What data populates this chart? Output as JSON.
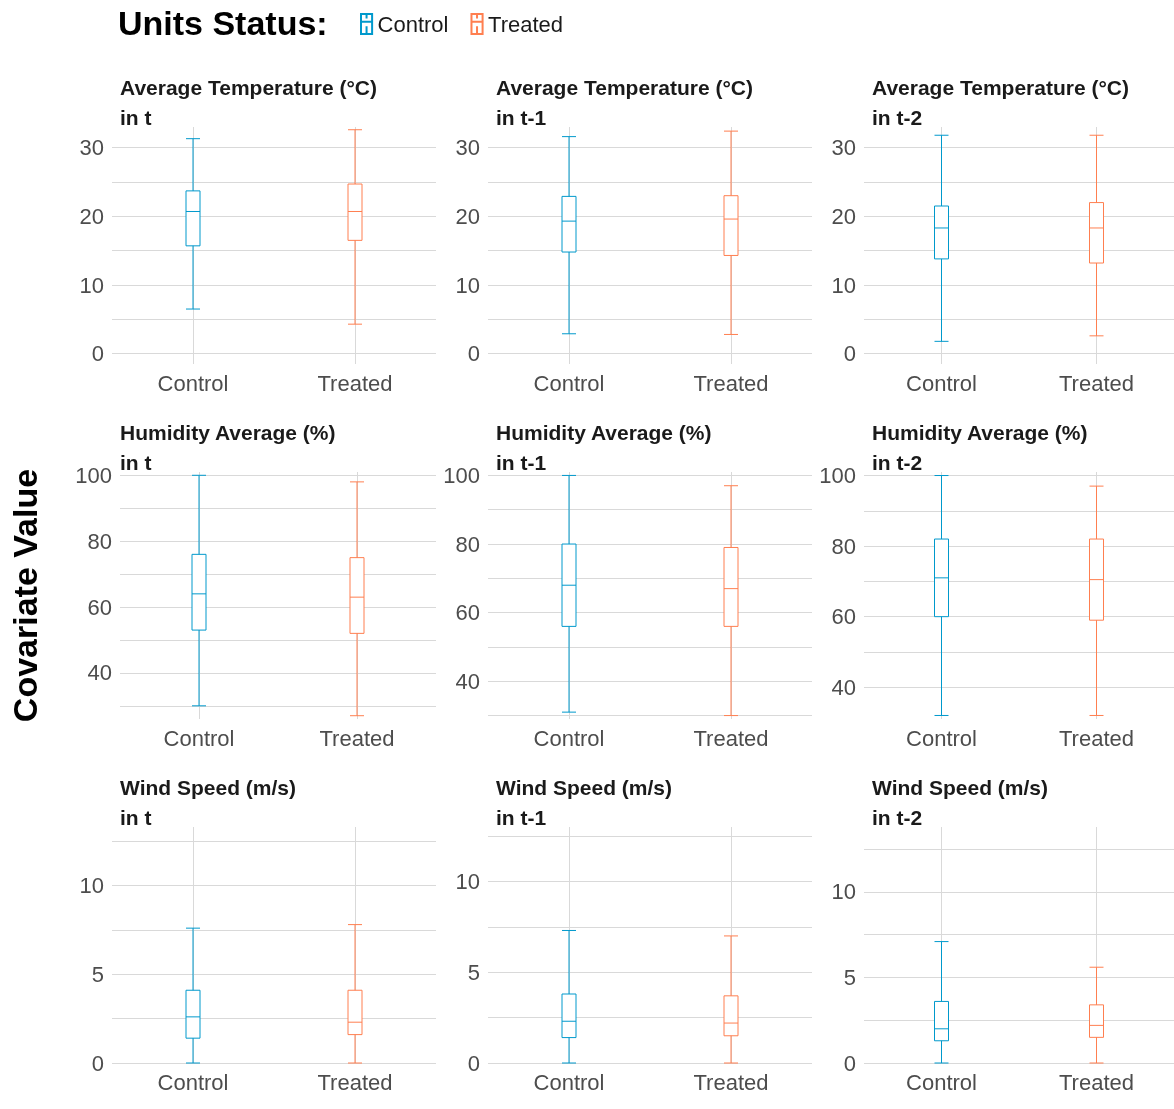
{
  "chart_data": [
    {
      "type": "box",
      "title": "Average Temperature (°C)\nin t",
      "legend_title": "Units Status:",
      "legend": "top",
      "grid": true,
      "categories": [
        "Control",
        "Treated"
      ],
      "ylim": [
        -1.5,
        33
      ],
      "yticks": [
        0,
        {
          "value": 5,
          "label": null
        },
        10,
        {
          "value": 15,
          "label": null
        },
        20,
        {
          "value": 25,
          "label": null
        },
        30
      ],
      "series": [
        {
          "name": "Control",
          "color": "#0099cc",
          "boxes": [
            {
              "low": 6.5,
              "q1": 15.7,
              "median": 20.7,
              "q3": 23.7,
              "high": 31.3
            },
            null
          ]
        },
        {
          "name": "Treated",
          "color": "#ff7f50",
          "boxes": [
            null,
            {
              "low": 4.3,
              "q1": 16.5,
              "median": 20.7,
              "q3": 24.7,
              "high": 32.6
            }
          ]
        }
      ]
    },
    {
      "type": "box",
      "title": "Average Temperature (°C)\nin t-1",
      "grid": true,
      "categories": [
        "Control",
        "Treated"
      ],
      "ylim": [
        -1.5,
        33
      ],
      "yticks": [
        0,
        {
          "value": 5,
          "label": null
        },
        10,
        {
          "value": 15,
          "label": null
        },
        20,
        {
          "value": 25,
          "label": null
        },
        30
      ],
      "series": [
        {
          "color": "#0099cc",
          "boxes": [
            {
              "low": 2.9,
              "q1": 14.8,
              "median": 19.3,
              "q3": 22.9,
              "high": 31.6
            },
            null
          ]
        },
        {
          "color": "#ff7f50",
          "boxes": [
            null,
            {
              "low": 2.8,
              "q1": 14.3,
              "median": 19.6,
              "q3": 23,
              "high": 32.4
            }
          ]
        }
      ]
    },
    {
      "type": "box",
      "title": "Average Temperature (°C)\nin t-2",
      "grid": true,
      "categories": [
        "Control",
        "Treated"
      ],
      "ylim": [
        -1.5,
        33
      ],
      "yticks": [
        0,
        {
          "value": 5,
          "label": null
        },
        10,
        {
          "value": 15,
          "label": null
        },
        20,
        {
          "value": 25,
          "label": null
        },
        30
      ],
      "series": [
        {
          "color": "#0099cc",
          "boxes": [
            {
              "low": 1.8,
              "q1": 13.8,
              "median": 18.3,
              "q3": 21.5,
              "high": 31.8
            },
            null
          ]
        },
        {
          "color": "#ff7f50",
          "boxes": [
            null,
            {
              "low": 2.6,
              "q1": 13.2,
              "median": 18.3,
              "q3": 22,
              "high": 31.8
            }
          ]
        }
      ]
    },
    {
      "type": "box",
      "title": "Humidity Average (%)\nin t",
      "ylabel": "Covariate Value",
      "grid": true,
      "categories": [
        "Control",
        "Treated"
      ],
      "ylim": [
        26,
        101
      ],
      "yticks": [
        {
          "value": 30,
          "label": null
        },
        40,
        {
          "value": 50,
          "label": null
        },
        60,
        {
          "value": 70,
          "label": null
        },
        80,
        {
          "value": 90,
          "label": null
        },
        100
      ],
      "series": [
        {
          "color": "#0099cc",
          "boxes": [
            {
              "low": 30,
              "q1": 53,
              "median": 64,
              "q3": 76,
              "high": 100
            },
            null
          ]
        },
        {
          "color": "#ff7f50",
          "boxes": [
            null,
            {
              "low": 27,
              "q1": 52,
              "median": 63,
              "q3": 75,
              "high": 98
            }
          ]
        }
      ]
    },
    {
      "type": "box",
      "title": "Humidity Average (%)\nin t-1",
      "grid": true,
      "categories": [
        "Control",
        "Treated"
      ],
      "ylim": [
        29,
        101
      ],
      "yticks": [
        {
          "value": 30,
          "label": null
        },
        40,
        {
          "value": 50,
          "label": null
        },
        60,
        {
          "value": 70,
          "label": null
        },
        80,
        {
          "value": 90,
          "label": null
        },
        100
      ],
      "series": [
        {
          "color": "#0099cc",
          "boxes": [
            {
              "low": 31,
              "q1": 56,
              "median": 68,
              "q3": 80,
              "high": 100
            },
            null
          ]
        },
        {
          "color": "#ff7f50",
          "boxes": [
            null,
            {
              "low": 30,
              "q1": 56,
              "median": 67,
              "q3": 79,
              "high": 97
            }
          ]
        }
      ]
    },
    {
      "type": "box",
      "title": "Humidity Average (%)\nin t-2",
      "grid": true,
      "categories": [
        "Control",
        "Treated"
      ],
      "ylim": [
        31,
        101
      ],
      "yticks": [
        40,
        {
          "value": 50,
          "label": null
        },
        60,
        {
          "value": 70,
          "label": null
        },
        80,
        {
          "value": 90,
          "label": null
        },
        100
      ],
      "series": [
        {
          "color": "#0099cc",
          "boxes": [
            {
              "low": 32,
              "q1": 60,
              "median": 71,
              "q3": 82,
              "high": 100
            },
            null
          ]
        },
        {
          "color": "#ff7f50",
          "boxes": [
            null,
            {
              "low": 32,
              "q1": 59,
              "median": 70.5,
              "q3": 82,
              "high": 97
            }
          ]
        }
      ]
    },
    {
      "type": "box",
      "title": "Wind Speed (m/s)\nin t",
      "grid": true,
      "categories": [
        "Control",
        "Treated"
      ],
      "ylim": [
        0,
        13.3
      ],
      "yticks": [
        0,
        {
          "value": 2.5,
          "label": null
        },
        5,
        {
          "value": 7.5,
          "label": null
        },
        10,
        {
          "value": 12.5,
          "label": null
        }
      ],
      "series": [
        {
          "color": "#0099cc",
          "boxes": [
            {
              "low": 0,
              "q1": 1.4,
              "median": 2.6,
              "q3": 4.1,
              "high": 7.6
            },
            null
          ]
        },
        {
          "color": "#ff7f50",
          "boxes": [
            null,
            {
              "low": 0,
              "q1": 1.6,
              "median": 2.3,
              "q3": 4.1,
              "high": 7.8
            }
          ]
        }
      ]
    },
    {
      "type": "box",
      "title": "Wind Speed (m/s)\nin t-1",
      "grid": true,
      "categories": [
        "Control",
        "Treated"
      ],
      "ylim": [
        0,
        13
      ],
      "yticks": [
        0,
        {
          "value": 2.5,
          "label": null
        },
        5,
        {
          "value": 7.5,
          "label": null
        },
        10,
        {
          "value": 12.5,
          "label": null
        }
      ],
      "series": [
        {
          "color": "#0099cc",
          "boxes": [
            {
              "low": 0,
              "q1": 1.4,
              "median": 2.3,
              "q3": 3.8,
              "high": 7.3
            },
            null
          ]
        },
        {
          "color": "#ff7f50",
          "boxes": [
            null,
            {
              "low": 0,
              "q1": 1.5,
              "median": 2.2,
              "q3": 3.7,
              "high": 7.0
            }
          ]
        }
      ]
    },
    {
      "type": "box",
      "title": "Wind Speed (m/s)\nin t-2",
      "grid": true,
      "categories": [
        "Control",
        "Treated"
      ],
      "ylim": [
        0,
        13.8
      ],
      "yticks": [
        0,
        {
          "value": 2.5,
          "label": null
        },
        5,
        {
          "value": 7.5,
          "label": null
        },
        10,
        {
          "value": 12.5,
          "label": null
        }
      ],
      "series": [
        {
          "color": "#0099cc",
          "boxes": [
            {
              "low": 0,
              "q1": 1.3,
              "median": 2.0,
              "q3": 3.6,
              "high": 7.1
            },
            null
          ]
        },
        {
          "color": "#ff7f50",
          "boxes": [
            null,
            {
              "low": 0,
              "q1": 1.5,
              "median": 2.2,
              "q3": 3.4,
              "high": 5.6
            }
          ]
        }
      ]
    }
  ]
}
